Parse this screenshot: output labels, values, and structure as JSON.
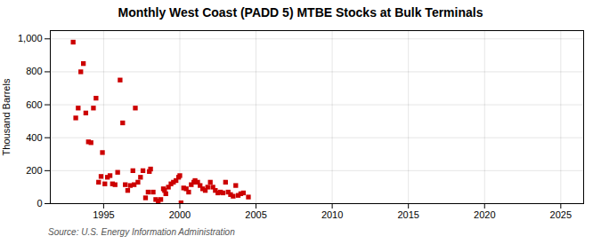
{
  "chart_data": {
    "type": "scatter",
    "title": "Monthly West Coast (PADD 5) MTBE Stocks at Bulk Terminals",
    "ylabel": "Thousand Barrels",
    "annotations": [
      "Source: U.S. Energy Information Administration"
    ],
    "color": "#cc0000",
    "marker": "square",
    "grid": true,
    "xlim": [
      1991.5,
      2026.5
    ],
    "ylim": [
      0,
      1050
    ],
    "xticks": [
      1995,
      2000,
      2005,
      2010,
      2015,
      2020,
      2025
    ],
    "yticks": [
      0,
      200,
      400,
      600,
      800,
      {
        "value": 1000,
        "label": "1,000"
      }
    ],
    "x": [
      1993.0,
      1993.17,
      1993.33,
      1993.5,
      1993.67,
      1993.83,
      1994.0,
      1994.17,
      1994.33,
      1994.5,
      1994.67,
      1994.83,
      1994.92,
      1995.08,
      1995.25,
      1995.42,
      1995.58,
      1995.75,
      1995.92,
      1996.08,
      1996.25,
      1996.42,
      1996.58,
      1996.75,
      1996.92,
      1997.0,
      1997.08,
      1997.25,
      1997.42,
      1997.58,
      1997.75,
      1997.92,
      1998.0,
      1998.08,
      1998.25,
      1998.42,
      1998.58,
      1998.75,
      1998.92,
      1999.0,
      1999.08,
      1999.25,
      1999.42,
      1999.58,
      1999.75,
      1999.92,
      2000.0,
      2000.08,
      2000.25,
      2000.42,
      2000.58,
      2000.75,
      2000.92,
      2001.0,
      2001.17,
      2001.33,
      2001.5,
      2001.67,
      2001.83,
      2002.0,
      2002.17,
      2002.33,
      2002.5,
      2002.67,
      2002.83,
      2003.0,
      2003.17,
      2003.33,
      2003.5,
      2003.67,
      2003.83,
      2004.0,
      2004.17,
      2004.5
    ],
    "values": [
      980,
      520,
      580,
      800,
      850,
      550,
      375,
      370,
      580,
      640,
      130,
      165,
      310,
      120,
      160,
      170,
      120,
      115,
      190,
      750,
      490,
      115,
      80,
      110,
      200,
      115,
      580,
      130,
      160,
      200,
      35,
      70,
      195,
      210,
      70,
      25,
      15,
      25,
      90,
      80,
      60,
      100,
      120,
      130,
      140,
      160,
      170,
      5,
      95,
      90,
      70,
      115,
      130,
      140,
      130,
      110,
      90,
      80,
      100,
      130,
      100,
      80,
      65,
      70,
      65,
      130,
      70,
      55,
      45,
      110,
      50,
      60,
      65,
      40
    ]
  }
}
